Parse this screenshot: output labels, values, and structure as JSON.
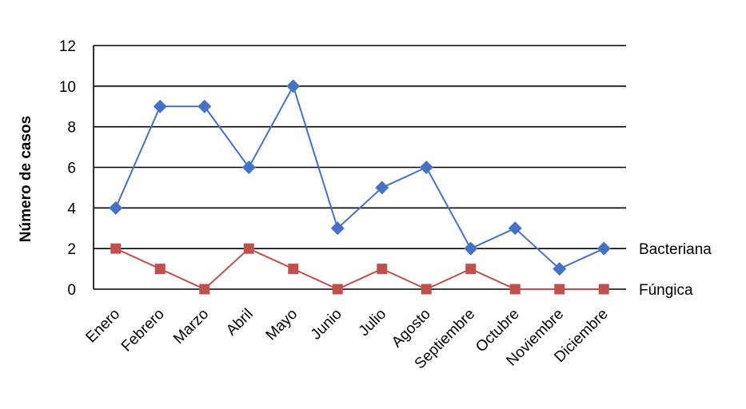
{
  "chart_data": {
    "type": "line",
    "categories": [
      "Enero",
      "Febrero",
      "Marzo",
      "Abril",
      "Mayo",
      "Junio",
      "Julio",
      "Agosto",
      "Septiembre",
      "Octubre",
      "Noviembre",
      "Diciembre"
    ],
    "series": [
      {
        "name": "Bacteriana",
        "values": [
          4,
          9,
          9,
          6,
          10,
          3,
          5,
          6,
          2,
          3,
          1,
          2
        ],
        "color": "#4472C4",
        "marker": "diamond"
      },
      {
        "name": "Fúngica",
        "values": [
          2,
          1,
          0,
          2,
          1,
          0,
          1,
          0,
          1,
          0,
          0,
          0
        ],
        "color": "#C0504D",
        "marker": "square"
      }
    ],
    "ylabel": "Número de casos",
    "xlabel": "",
    "ylim": [
      0,
      12
    ],
    "yticks": [
      0,
      2,
      4,
      6,
      8,
      10,
      12
    ],
    "grid": true,
    "legend": "right, labels at line ends"
  }
}
